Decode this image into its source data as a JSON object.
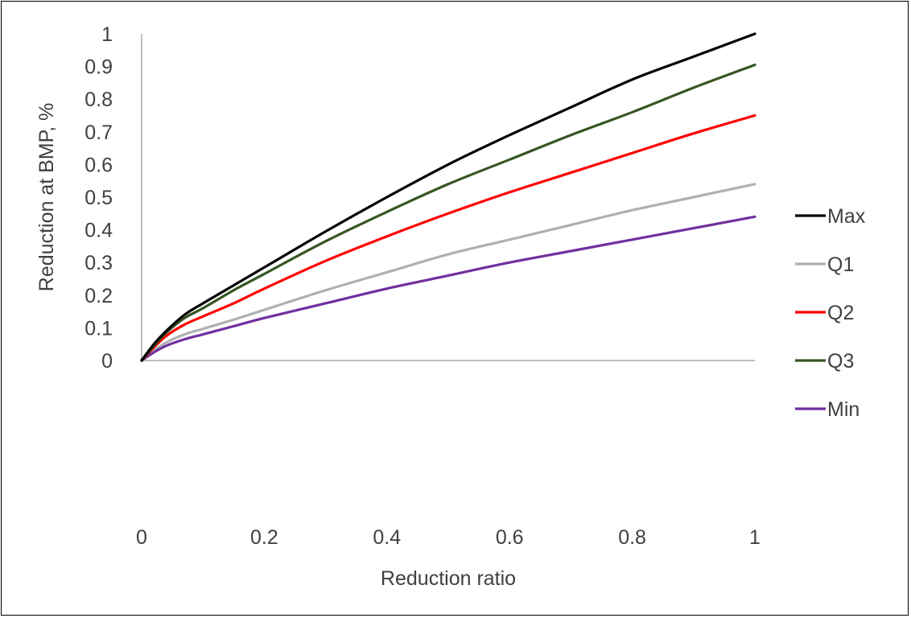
{
  "chart_data": {
    "type": "line",
    "title": "",
    "xlabel": "Reduction ratio",
    "ylabel": "Reduction at BMP, %",
    "xlim": [
      0,
      1
    ],
    "ylim": [
      0,
      1
    ],
    "x_ticks": [
      "0",
      "0.2",
      "0.4",
      "0.6",
      "0.8",
      "1"
    ],
    "y_ticks": [
      "0",
      "0.1",
      "0.2",
      "0.3",
      "0.4",
      "0.5",
      "0.6",
      "0.7",
      "0.8",
      "0.9",
      "1"
    ],
    "grid": false,
    "legend_position": "right",
    "x": [
      0,
      0.02,
      0.04,
      0.07,
      0.1,
      0.15,
      0.2,
      0.3,
      0.4,
      0.5,
      0.6,
      0.7,
      0.8,
      0.9,
      1.0
    ],
    "series": [
      {
        "name": "Max",
        "color": "#000000",
        "values": [
          0,
          0.05,
          0.09,
          0.14,
          0.175,
          0.23,
          0.285,
          0.395,
          0.5,
          0.6,
          0.69,
          0.775,
          0.86,
          0.93,
          1.0
        ]
      },
      {
        "name": "Q1",
        "color": "#b0b0b0",
        "values": [
          0,
          0.03,
          0.055,
          0.08,
          0.097,
          0.125,
          0.155,
          0.215,
          0.27,
          0.325,
          0.37,
          0.415,
          0.46,
          0.5,
          0.54
        ]
      },
      {
        "name": "Q2",
        "color": "#ff0000",
        "values": [
          0,
          0.04,
          0.075,
          0.11,
          0.135,
          0.175,
          0.22,
          0.305,
          0.38,
          0.45,
          0.515,
          0.575,
          0.635,
          0.695,
          0.75
        ]
      },
      {
        "name": "Q3",
        "color": "#375623",
        "values": [
          0,
          0.045,
          0.085,
          0.13,
          0.16,
          0.215,
          0.265,
          0.365,
          0.455,
          0.54,
          0.615,
          0.69,
          0.76,
          0.835,
          0.905
        ]
      },
      {
        "name": "Min",
        "color": "#7030a0",
        "values": [
          0,
          0.025,
          0.045,
          0.065,
          0.08,
          0.105,
          0.13,
          0.175,
          0.22,
          0.26,
          0.3,
          0.335,
          0.37,
          0.405,
          0.44
        ]
      }
    ]
  }
}
